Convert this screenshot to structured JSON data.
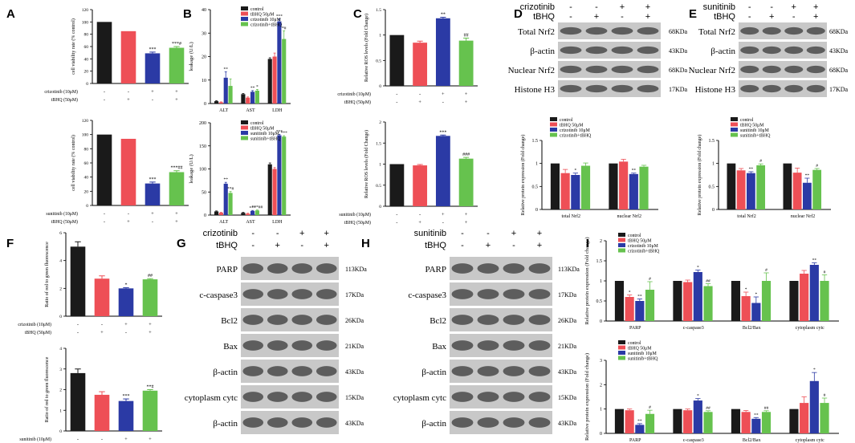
{
  "colors": {
    "control": "#1a1a1a",
    "tbhq": "#ee4f56",
    "drug": "#2b3aa5",
    "combo": "#66c24e"
  },
  "chart_data": [
    {
      "id": "A1",
      "panel_label": "A",
      "type": "bar",
      "ylabel": "cell viability rate (% control)",
      "ylim": [
        0,
        120
      ],
      "yticks": [
        0,
        20,
        40,
        60,
        80,
        100,
        120
      ],
      "series": [
        {
          "values": [
            100,
            85,
            49,
            58
          ],
          "errors": [
            0,
            0,
            2,
            2
          ]
        }
      ],
      "stars": [
        "",
        "",
        "***",
        "***#"
      ],
      "treatments": [
        {
          "label": "crizotinib  (10μM)",
          "values": [
            "-",
            "-",
            "+",
            "+"
          ]
        },
        {
          "label": "tBHQ   (50μM)",
          "values": [
            "-",
            "+",
            "-",
            "+"
          ]
        }
      ]
    },
    {
      "id": "A2",
      "type": "bar",
      "ylabel": "cell viability rate (% control)",
      "ylim": [
        0,
        120
      ],
      "yticks": [
        0,
        20,
        40,
        60,
        80,
        100,
        120
      ],
      "series": [
        {
          "values": [
            100,
            94,
            31,
            47
          ],
          "errors": [
            0,
            0,
            2,
            2
          ]
        }
      ],
      "stars": [
        "",
        "",
        "***",
        "***##"
      ],
      "treatments": [
        {
          "label": "sunitinib  (10μM)",
          "values": [
            "-",
            "-",
            "+",
            "+"
          ]
        },
        {
          "label": "tBHQ   (50μM)",
          "values": [
            "-",
            "+",
            "-",
            "+"
          ]
        }
      ]
    },
    {
      "id": "B1",
      "panel_label": "B",
      "type": "bar",
      "ylabel": "leakage (U/L)",
      "ylim": [
        0,
        40
      ],
      "yticks": [
        0,
        10,
        20,
        30,
        40
      ],
      "categories": [
        "ALT",
        "AST",
        "LDH"
      ],
      "legend": [
        "control",
        "tBHQ 50μM",
        "crizotinib 10μM",
        "crizotinib+tBHQ"
      ],
      "series": [
        {
          "values": [
            1,
            4,
            19
          ],
          "errors": [
            0.2,
            0.3,
            0.5
          ]
        },
        {
          "values": [
            0.5,
            2.5,
            20
          ],
          "errors": [
            0.2,
            0.3,
            1.5
          ]
        },
        {
          "values": [
            11,
            5,
            35
          ],
          "errors": [
            2.5,
            0.5,
            1
          ]
        },
        {
          "values": [
            7.5,
            5.5,
            27.5
          ],
          "errors": [
            3,
            0.5,
            3.5
          ]
        }
      ],
      "stars": [
        [
          "",
          "",
          ""
        ],
        [
          "",
          "",
          ""
        ],
        [
          "**",
          "**",
          "***"
        ],
        [
          "",
          "*",
          "*#"
        ]
      ]
    },
    {
      "id": "B2",
      "type": "bar",
      "ylabel": "leakage (U/L)",
      "ylim": [
        0,
        200
      ],
      "yticks": [
        0,
        50,
        100,
        150,
        200
      ],
      "categories": [
        "ALT",
        "AST",
        "LDH"
      ],
      "legend": [
        "control",
        "tBHQ 50μM",
        "sunitinib 10μM",
        "sunitinib+tBHQ"
      ],
      "series": [
        {
          "values": [
            8,
            5,
            110
          ],
          "errors": [
            1,
            1,
            3
          ]
        },
        {
          "values": [
            5,
            3,
            100
          ],
          "errors": [
            1,
            1,
            3
          ]
        },
        {
          "values": [
            68,
            9,
            173
          ],
          "errors": [
            3,
            1,
            2
          ]
        },
        {
          "values": [
            48,
            10,
            170
          ],
          "errors": [
            3,
            1,
            2
          ]
        }
      ],
      "stars": [
        [
          "",
          "",
          ""
        ],
        [
          "",
          "",
          ""
        ],
        [
          "**",
          "***",
          "***"
        ],
        [
          "**#",
          "***##",
          "***"
        ]
      ]
    },
    {
      "id": "C1",
      "panel_label": "C",
      "type": "bar",
      "ylabel": "Relative ROS levels (Fold Change)",
      "ylim": [
        0,
        1.5
      ],
      "yticks": [
        0,
        0.5,
        1.0,
        1.5
      ],
      "series": [
        {
          "values": [
            1.0,
            0.85,
            1.33,
            0.89
          ],
          "errors": [
            0,
            0.03,
            0.02,
            0.05
          ]
        }
      ],
      "stars": [
        "",
        "",
        "**",
        "##"
      ],
      "treatments": [
        {
          "label": "crizotinib (10μM)",
          "values": [
            "-",
            "-",
            "+",
            "+"
          ]
        },
        {
          "label": "tBHQ   (50μM)",
          "values": [
            "-",
            "+",
            "-",
            "+"
          ]
        }
      ]
    },
    {
      "id": "C2",
      "type": "bar",
      "ylabel": "Relative ROS levels (Fold Change)",
      "ylim": [
        0,
        2.0
      ],
      "yticks": [
        0,
        0.5,
        1.0,
        1.5,
        2.0
      ],
      "series": [
        {
          "values": [
            1.0,
            0.97,
            1.67,
            1.13
          ],
          "errors": [
            0,
            0.02,
            0.02,
            0.03
          ]
        }
      ],
      "stars": [
        "",
        "",
        "***",
        "###"
      ],
      "treatments": [
        {
          "label": "sunitinib (10μM)",
          "values": [
            "-",
            "-",
            "+",
            "+"
          ]
        },
        {
          "label": "tBHQ   (50μM)",
          "values": [
            "-",
            "+",
            "-",
            "+"
          ]
        }
      ]
    },
    {
      "id": "D2",
      "type": "bar",
      "ylabel": "Relative protein expression (Fold change)",
      "ylim": [
        0,
        1.5
      ],
      "yticks": [
        0,
        0.5,
        1.0,
        1.5
      ],
      "categories": [
        "total Nrf2",
        "nuclear Nrf2"
      ],
      "legend": [
        "control",
        "tBHQ 50μM",
        "crizotinib 10μM",
        "crizotinib+tBHQ"
      ],
      "series": [
        {
          "values": [
            1,
            1
          ],
          "errors": [
            0,
            0
          ]
        },
        {
          "values": [
            0.79,
            1.04
          ],
          "errors": [
            0.08,
            0.05
          ]
        },
        {
          "values": [
            0.75,
            0.77
          ],
          "errors": [
            0.04,
            0.02
          ]
        },
        {
          "values": [
            0.95,
            0.93
          ],
          "errors": [
            0.06,
            0.03
          ]
        }
      ],
      "stars": [
        [
          "",
          ""
        ],
        [
          "",
          ""
        ],
        [
          "*",
          "**"
        ],
        [
          "",
          ""
        ]
      ]
    },
    {
      "id": "E2",
      "type": "bar",
      "ylabel": "Relative protein expression (Fold change)",
      "ylim": [
        0,
        1.5
      ],
      "yticks": [
        0,
        0.5,
        1.0,
        1.5
      ],
      "categories": [
        "total Nrf2",
        "nuclear Nrf2"
      ],
      "legend": [
        "control",
        "tBHQ 50μM",
        "sunitinib 10μM",
        "sunitinib+tBHQ"
      ],
      "series": [
        {
          "values": [
            1,
            1
          ],
          "errors": [
            0,
            0
          ]
        },
        {
          "values": [
            0.85,
            0.8
          ],
          "errors": [
            0.04,
            0.1
          ]
        },
        {
          "values": [
            0.79,
            0.58
          ],
          "errors": [
            0.03,
            0.1
          ]
        },
        {
          "values": [
            0.96,
            0.86
          ],
          "errors": [
            0.03,
            0.03
          ]
        }
      ],
      "stars": [
        [
          "",
          ""
        ],
        [
          "",
          ""
        ],
        [
          "**",
          "**"
        ],
        [
          "#",
          "#"
        ]
      ]
    },
    {
      "id": "F1",
      "panel_label": "F",
      "type": "bar",
      "ylabel": "Ratio of red to green fluorescence",
      "ylim": [
        0,
        6
      ],
      "yticks": [
        0,
        2,
        4,
        6
      ],
      "series": [
        {
          "values": [
            5.0,
            2.7,
            2.0,
            2.65
          ],
          "errors": [
            0.35,
            0.2,
            0.05,
            0.05
          ]
        }
      ],
      "stars": [
        "",
        "",
        "*",
        "##"
      ],
      "treatments": [
        {
          "label": "crizotinib (10μM)",
          "values": [
            "-",
            "-",
            "+",
            "+"
          ]
        },
        {
          "label": "tBHQ   (50μM)",
          "values": [
            "-",
            "+",
            "-",
            "+"
          ]
        }
      ]
    },
    {
      "id": "F2",
      "type": "bar",
      "ylabel": "Ratio of red to green fluorescence",
      "ylim": [
        0,
        4
      ],
      "yticks": [
        0,
        1,
        2,
        3,
        4
      ],
      "series": [
        {
          "values": [
            2.8,
            1.75,
            1.45,
            1.95
          ],
          "errors": [
            0.2,
            0.15,
            0.1,
            0.05
          ]
        }
      ],
      "stars": [
        "",
        "",
        "***",
        "**#"
      ],
      "treatments": [
        {
          "label": "sunitinib (10μM)",
          "values": [
            "-",
            "-",
            "+",
            "+"
          ]
        },
        {
          "label": "tBHQ   (50μM)",
          "values": [
            "-",
            "+",
            "-",
            "+"
          ]
        }
      ]
    },
    {
      "id": "I1",
      "panel_label": "I",
      "type": "bar",
      "ylabel": "Relative protein expression (Fold change)",
      "ylim": [
        0,
        2.0
      ],
      "yticks": [
        0,
        0.5,
        1.0,
        1.5,
        2.0
      ],
      "categories": [
        "PARP",
        "c-caspase3",
        "Bcl2/Bax",
        "cytoplasm cytc"
      ],
      "legend": [
        "control",
        "tBHQ 50μM",
        "crizotinib 10μM",
        "crizotinib+tBHQ"
      ],
      "series": [
        {
          "values": [
            1,
            1,
            1,
            1
          ],
          "errors": [
            0,
            0,
            0,
            0
          ]
        },
        {
          "values": [
            0.6,
            0.97,
            0.62,
            1.18
          ],
          "errors": [
            0.05,
            0.05,
            0.1,
            0.08
          ]
        },
        {
          "values": [
            0.5,
            1.22,
            0.45,
            1.4
          ],
          "errors": [
            0.05,
            0.05,
            0.15,
            0.05
          ]
        },
        {
          "values": [
            0.78,
            0.87,
            1.0,
            1.0
          ],
          "errors": [
            0.2,
            0.06,
            0.2,
            0.15
          ]
        }
      ],
      "stars": [
        [
          "",
          "",
          "",
          ""
        ],
        [
          "*",
          "",
          "*",
          ""
        ],
        [
          "**",
          "*",
          "*",
          "**"
        ],
        [
          "#",
          "##",
          "#",
          "#"
        ]
      ]
    },
    {
      "id": "I2",
      "type": "bar",
      "ylabel": "Relative protein expression (Fold change)",
      "ylim": [
        0,
        3
      ],
      "yticks": [
        0,
        1,
        2,
        3
      ],
      "categories": [
        "PARP",
        "c-caspase3",
        "Bcl2/Bax",
        "cytoplasm cytc"
      ],
      "legend": [
        "control",
        "tBHQ 50μM",
        "sunitinib 10μM",
        "sunitinib+tBHQ"
      ],
      "series": [
        {
          "values": [
            1,
            1,
            1,
            1
          ],
          "errors": [
            0,
            0,
            0,
            0
          ]
        },
        {
          "values": [
            0.95,
            0.95,
            0.88,
            1.25
          ],
          "errors": [
            0.05,
            0.05,
            0.06,
            0.25
          ]
        },
        {
          "values": [
            0.35,
            1.35,
            0.6,
            2.15
          ],
          "errors": [
            0.05,
            0.08,
            0.05,
            0.35
          ]
        },
        {
          "values": [
            0.8,
            0.88,
            0.88,
            1.25
          ],
          "errors": [
            0.15,
            0.05,
            0.05,
            0.2
          ]
        }
      ],
      "stars": [
        [
          "",
          "",
          "",
          ""
        ],
        [
          "",
          "",
          "",
          ""
        ],
        [
          "**",
          "*",
          "**",
          "*"
        ],
        [
          "#",
          "##",
          "##",
          "#"
        ]
      ]
    }
  ],
  "blots": [
    {
      "id": "D",
      "panel_label": "D",
      "drug": "crizotinib",
      "drug_signs": [
        "-",
        "-",
        "+",
        "+"
      ],
      "tbhq": "tBHQ",
      "tbhq_signs": [
        "-",
        "+",
        "-",
        "+"
      ],
      "rows": [
        {
          "label": "Total Nrf2",
          "size": "68KDa"
        },
        {
          "label": "β-actin",
          "size": "43KDa"
        },
        {
          "label": "Nuclear Nrf2",
          "size": "68KDa"
        },
        {
          "label": "Histone H3",
          "size": "17KDa"
        }
      ]
    },
    {
      "id": "E",
      "panel_label": "E",
      "drug": "sunitinib",
      "drug_signs": [
        "-",
        "-",
        "+",
        "+"
      ],
      "tbhq": "tBHQ",
      "tbhq_signs": [
        "-",
        "+",
        "-",
        "+"
      ],
      "rows": [
        {
          "label": "Total Nrf2",
          "size": "68KDa"
        },
        {
          "label": "β-actin",
          "size": "43KDa"
        },
        {
          "label": "Nuclear Nrf2",
          "size": "68KDa"
        },
        {
          "label": "Histone H3",
          "size": "17KDa"
        }
      ]
    },
    {
      "id": "G",
      "panel_label": "G",
      "drug": "crizotinib",
      "drug_signs": [
        "-",
        "-",
        "+",
        "+"
      ],
      "tbhq": "tBHQ",
      "tbhq_signs": [
        "-",
        "+",
        "-",
        "+"
      ],
      "rows": [
        {
          "label": "PARP",
          "size": "113KDa"
        },
        {
          "label": "c-caspase3",
          "size": "17KDa"
        },
        {
          "label": "Bcl2",
          "size": "26KDa"
        },
        {
          "label": "Bax",
          "size": "21KDa"
        },
        {
          "label": "β-actin",
          "size": "43KDa"
        },
        {
          "label": "cytoplasm cytc",
          "size": "15KDa"
        },
        {
          "label": "β-actin",
          "size": "43KDa"
        }
      ]
    },
    {
      "id": "H",
      "panel_label": "H",
      "drug": "sunitinib",
      "drug_signs": [
        "-",
        "-",
        "+",
        "+"
      ],
      "tbhq": "tBHQ",
      "tbhq_signs": [
        "-",
        "+",
        "-",
        "+"
      ],
      "rows": [
        {
          "label": "PARP",
          "size": "113KDa"
        },
        {
          "label": "c-caspase3",
          "size": "17KDa"
        },
        {
          "label": "Bcl2",
          "size": "26KDa"
        },
        {
          "label": "Bax",
          "size": "21KDa"
        },
        {
          "label": "β-actin",
          "size": "43KDa"
        },
        {
          "label": "cytoplasm cytc",
          "size": "15KDa"
        },
        {
          "label": "β-actin",
          "size": "43KDa"
        }
      ]
    }
  ]
}
